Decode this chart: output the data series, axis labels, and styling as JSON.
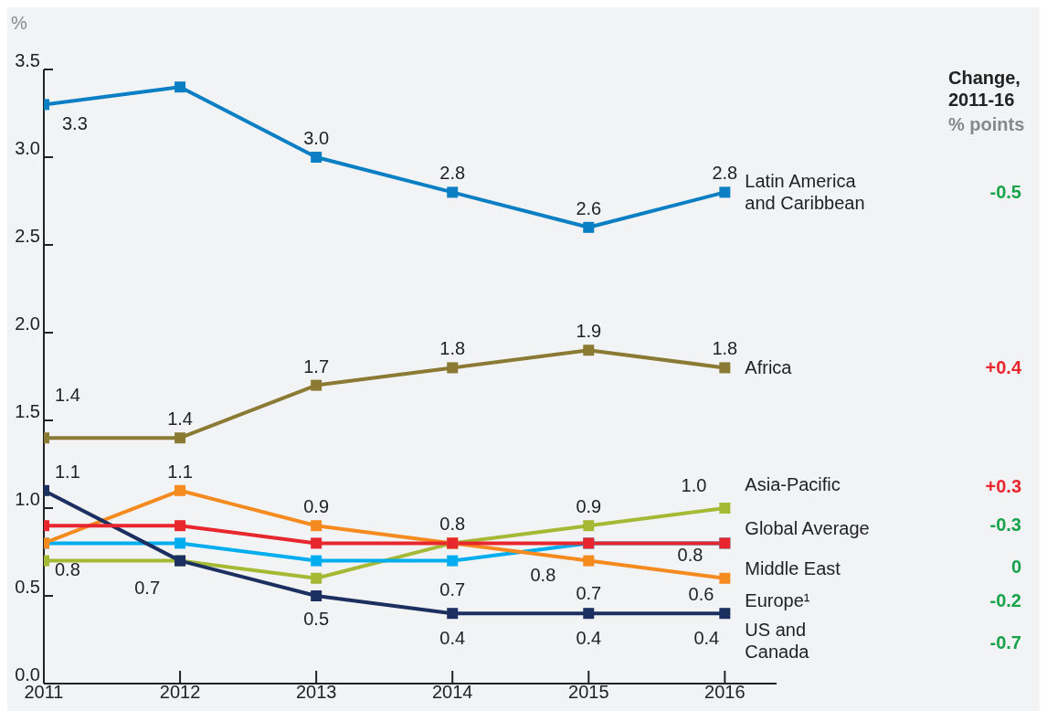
{
  "chart_data": {
    "type": "line",
    "ylabel": "%",
    "categories": [
      "2011",
      "2012",
      "2013",
      "2014",
      "2015",
      "2016"
    ],
    "ylim": [
      0,
      3.5
    ],
    "yticks": [
      {
        "value": 0,
        "label": "0.0"
      },
      0.5,
      {
        "value": 1,
        "label": "1.0"
      },
      1.5,
      {
        "value": 2,
        "label": "2.0"
      },
      2.5,
      {
        "value": 3,
        "label": "3.0"
      },
      3.5
    ],
    "grid": false,
    "legend": false,
    "marker": "square",
    "line_style": "solid",
    "series": [
      {
        "name": "Latin America and Caribbean",
        "color": "#0a7fc4",
        "values": [
          3.3,
          3.4,
          3.0,
          2.8,
          2.6,
          2.8
        ],
        "value_labels": [
          "3.3",
          null,
          "3.0",
          "2.8",
          "2.6",
          "2.8"
        ]
      },
      {
        "name": "Africa",
        "color": "#8a7a34",
        "values": [
          1.4,
          1.4,
          1.7,
          1.8,
          1.9,
          1.8
        ],
        "value_labels": [
          "1.4",
          "1.4",
          "1.7",
          "1.8",
          "1.9",
          "1.8"
        ]
      },
      {
        "name": "Asia-Pacific",
        "color": "#a5b935",
        "values": [
          0.7,
          0.7,
          0.6,
          0.8,
          0.9,
          1.0
        ],
        "value_labels": [
          null,
          null,
          null,
          null,
          "0.9",
          "1.0"
        ]
      },
      {
        "name": "Middle East",
        "color": "#00aeef",
        "values": [
          0.8,
          0.8,
          0.7,
          0.7,
          0.8,
          0.8
        ],
        "value_labels": [
          "0.8",
          null,
          null,
          "0.7",
          "0.8",
          null
        ]
      },
      {
        "name": "Europe¹",
        "color": "#f58a1f",
        "values": [
          0.8,
          1.1,
          0.9,
          0.8,
          0.7,
          0.6
        ],
        "value_labels": [
          null,
          "1.1",
          "0.9",
          "0.8",
          "0.7",
          "0.6"
        ]
      },
      {
        "name": "US and Canada",
        "color": "#1b3060",
        "values": [
          1.1,
          0.7,
          0.5,
          0.4,
          0.4,
          0.4
        ],
        "value_labels": [
          "1.1",
          "0.7",
          "0.5",
          "0.4",
          "0.4",
          "0.4"
        ]
      },
      {
        "name": "Global Average",
        "color": "#e8262e",
        "values": [
          0.9,
          0.9,
          0.8,
          0.8,
          0.8,
          0.8
        ],
        "value_labels": [
          null,
          null,
          null,
          null,
          null,
          "0.8"
        ]
      }
    ],
    "annotations": [
      "Change, 2011-16",
      "% points",
      "-0.5",
      "+0.4",
      "+0.3",
      "0",
      "-0.2",
      "-0.7",
      "-0.3"
    ]
  }
}
